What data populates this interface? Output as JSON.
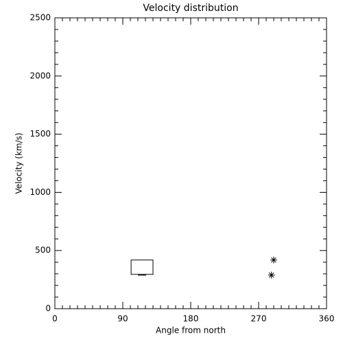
{
  "chart_data": {
    "type": "box-scatter",
    "title": "Velocity distribution",
    "x_label": "Angle from north",
    "y_label": "Velocity (km/s)",
    "xlim": [
      0,
      360
    ],
    "xticks": [
      0,
      90,
      180,
      270,
      360
    ],
    "x_minor_divisions": 9,
    "ylim": [
      0,
      2500
    ],
    "yticks": [
      0,
      500,
      1000,
      1500,
      2000,
      2500
    ],
    "y_minor_divisions": 5,
    "box": {
      "x": [
        101,
        130
      ],
      "low": 295,
      "high": 419,
      "median": 290
    },
    "points": {
      "x": [
        290,
        287
      ],
      "y": [
        419,
        289
      ]
    },
    "color": "#000000"
  }
}
